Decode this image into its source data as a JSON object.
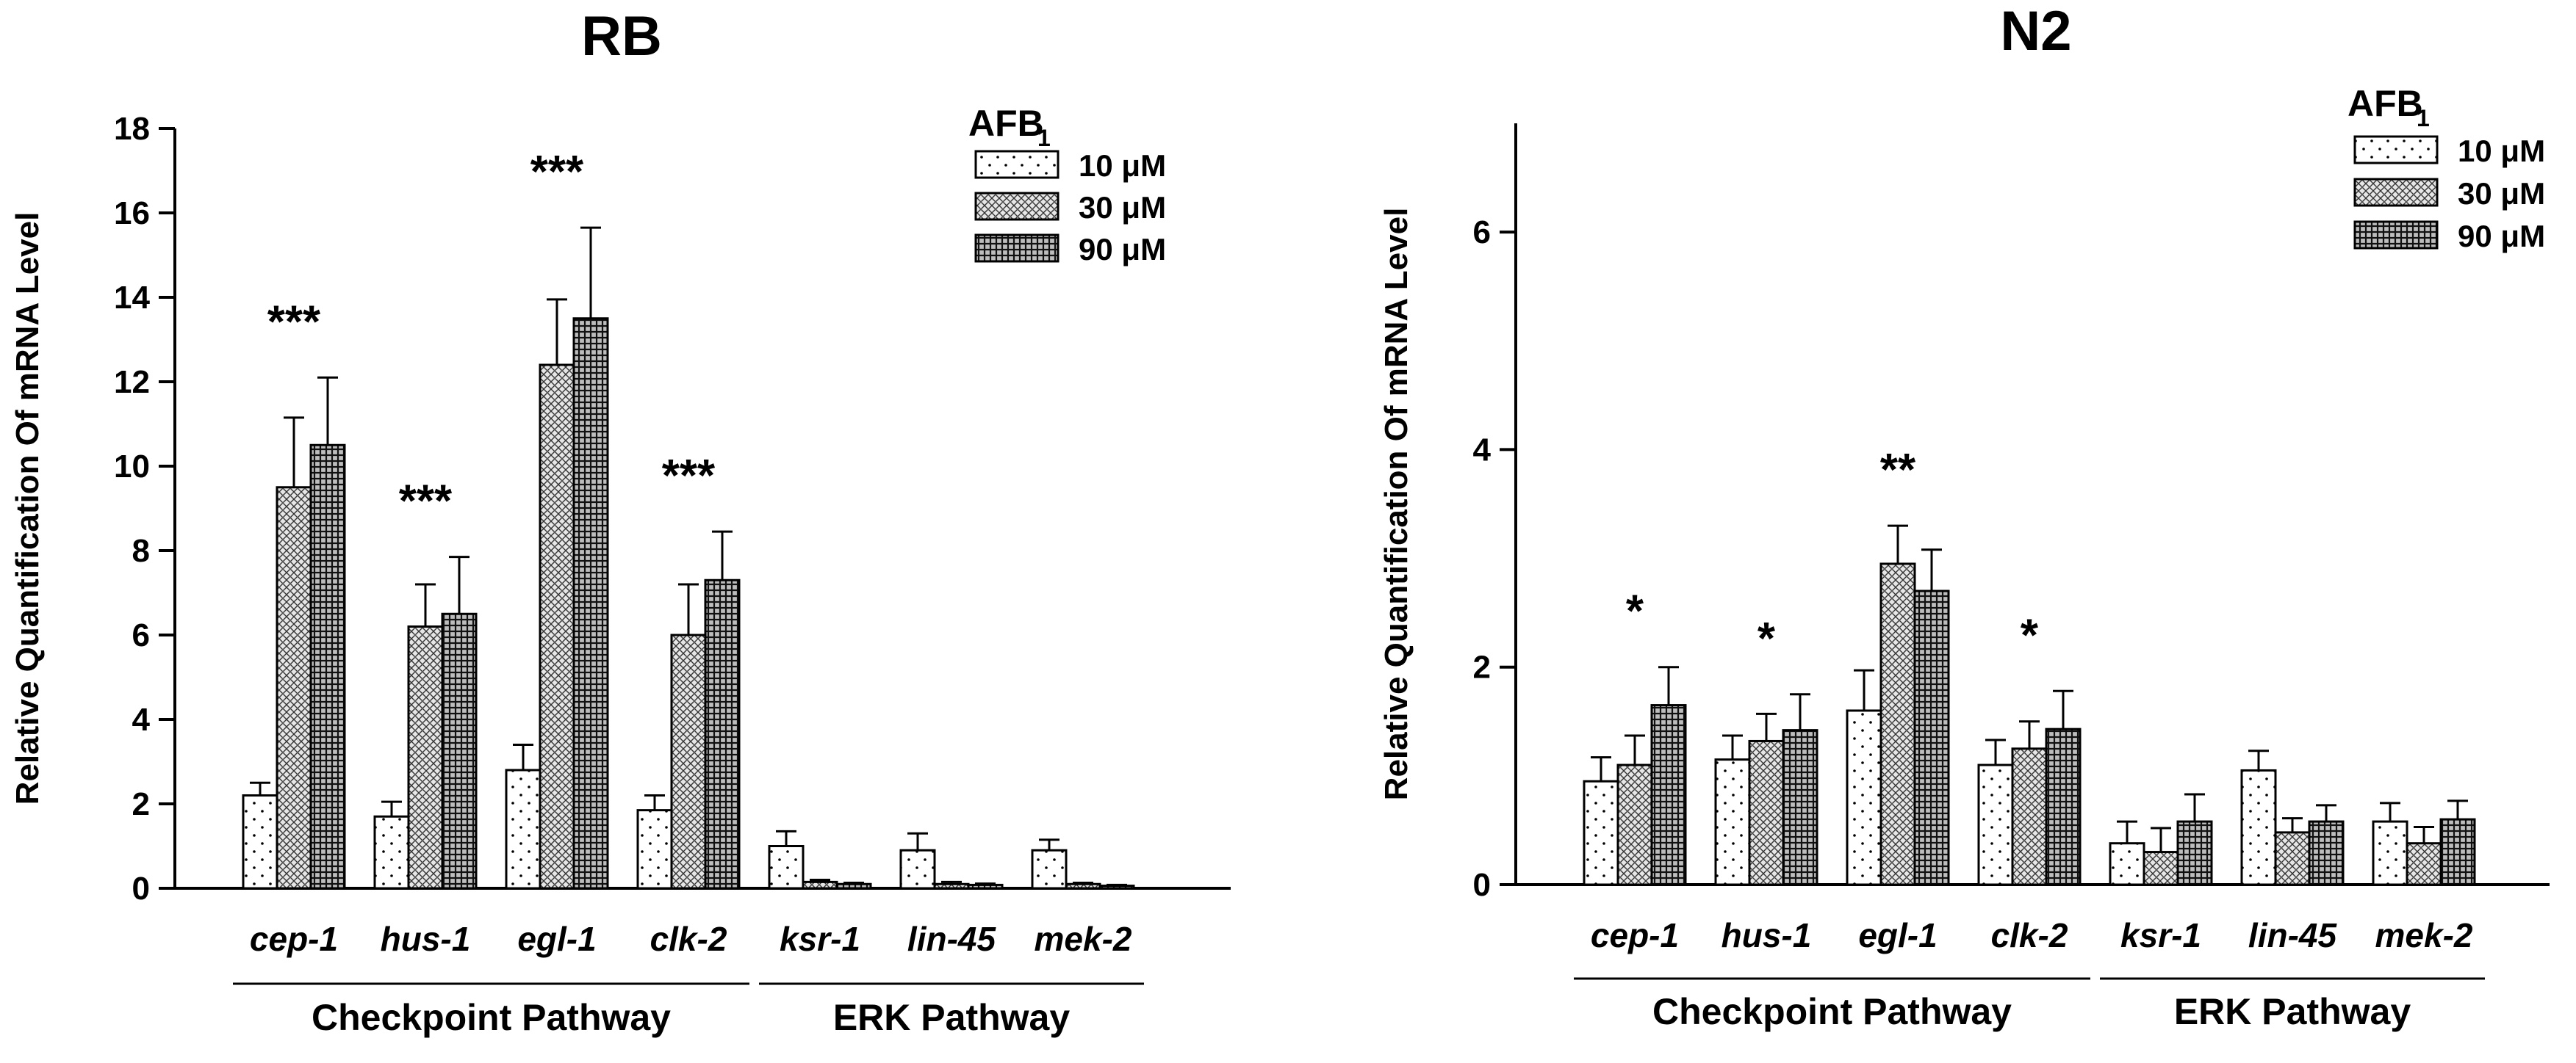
{
  "charts": [
    {
      "type": "bar",
      "title": "RB",
      "ylabel": "Relative Quantification Of  mRNA Level",
      "ylim": [
        0,
        18
      ],
      "yticks": [
        "0",
        "2",
        "4",
        "6",
        "8",
        "10",
        "12",
        "14",
        "16",
        "18"
      ],
      "categories": [
        "cep-1",
        "hus-1",
        "egl-1",
        "clk-2",
        "ksr-1",
        "lin-45",
        "mek-2"
      ],
      "groups": [
        {
          "label": "Checkpoint Pathway",
          "categories": [
            "cep-1",
            "hus-1",
            "egl-1",
            "clk-2"
          ]
        },
        {
          "label": "ERK Pathway",
          "categories": [
            "ksr-1",
            "lin-45",
            "mek-2"
          ]
        }
      ],
      "legend": {
        "title": "AFB",
        "title_sub": "1",
        "position": "top-right"
      },
      "series": [
        {
          "name": "10 μM",
          "values": [
            2.2,
            1.7,
            2.8,
            1.85,
            1.0,
            0.9,
            0.9
          ],
          "errors": [
            0.3,
            0.35,
            0.6,
            0.35,
            0.35,
            0.4,
            0.25
          ],
          "pattern": "sparse"
        },
        {
          "name": "30 μM",
          "values": [
            9.5,
            6.2,
            12.4,
            6.0,
            0.15,
            0.1,
            0.1
          ],
          "errors": [
            1.65,
            1.0,
            1.55,
            1.2,
            0.05,
            0.05,
            0.03
          ],
          "pattern": "medium"
        },
        {
          "name": "90 μM",
          "values": [
            10.5,
            6.5,
            13.5,
            7.3,
            0.1,
            0.08,
            0.06
          ],
          "errors": [
            1.6,
            1.35,
            2.15,
            1.15,
            0.03,
            0.03,
            0.02
          ],
          "pattern": "dense"
        }
      ],
      "significance": [
        {
          "category": "cep-1",
          "text": "***"
        },
        {
          "category": "hus-1",
          "text": "***"
        },
        {
          "category": "egl-1",
          "text": "***"
        },
        {
          "category": "clk-2",
          "text": "***"
        }
      ],
      "grid": false
    },
    {
      "type": "bar",
      "title": "N2",
      "ylabel": "Relative Quantification Of  mRNA Level",
      "ylim": [
        0,
        7
      ],
      "yticks": [
        "0",
        "2",
        "4",
        "6"
      ],
      "categories": [
        "cep-1",
        "hus-1",
        "egl-1",
        "clk-2",
        "ksr-1",
        "lin-45",
        "mek-2"
      ],
      "groups": [
        {
          "label": "Checkpoint Pathway",
          "categories": [
            "cep-1",
            "hus-1",
            "egl-1",
            "clk-2"
          ]
        },
        {
          "label": "ERK Pathway",
          "categories": [
            "ksr-1",
            "lin-45",
            "mek-2"
          ]
        }
      ],
      "legend": {
        "title": "AFB",
        "title_sub": "1",
        "position": "top-right"
      },
      "series": [
        {
          "name": "10 μM",
          "values": [
            0.95,
            1.15,
            1.6,
            1.1,
            0.38,
            1.05,
            0.58
          ],
          "errors": [
            0.22,
            0.22,
            0.37,
            0.23,
            0.2,
            0.18,
            0.17
          ],
          "pattern": "sparse"
        },
        {
          "name": "30 μM",
          "values": [
            1.1,
            1.32,
            2.95,
            1.25,
            0.3,
            0.48,
            0.38
          ],
          "errors": [
            0.27,
            0.25,
            0.35,
            0.25,
            0.22,
            0.13,
            0.15
          ],
          "pattern": "medium"
        },
        {
          "name": "90 μM",
          "values": [
            1.65,
            1.42,
            2.7,
            1.43,
            0.58,
            0.58,
            0.6
          ],
          "errors": [
            0.35,
            0.33,
            0.38,
            0.35,
            0.25,
            0.15,
            0.17
          ],
          "pattern": "dense"
        }
      ],
      "significance": [
        {
          "category": "cep-1",
          "text": "*"
        },
        {
          "category": "hus-1",
          "text": "*"
        },
        {
          "category": "egl-1",
          "text": "**"
        },
        {
          "category": "clk-2",
          "text": "*"
        }
      ],
      "grid": false
    }
  ]
}
